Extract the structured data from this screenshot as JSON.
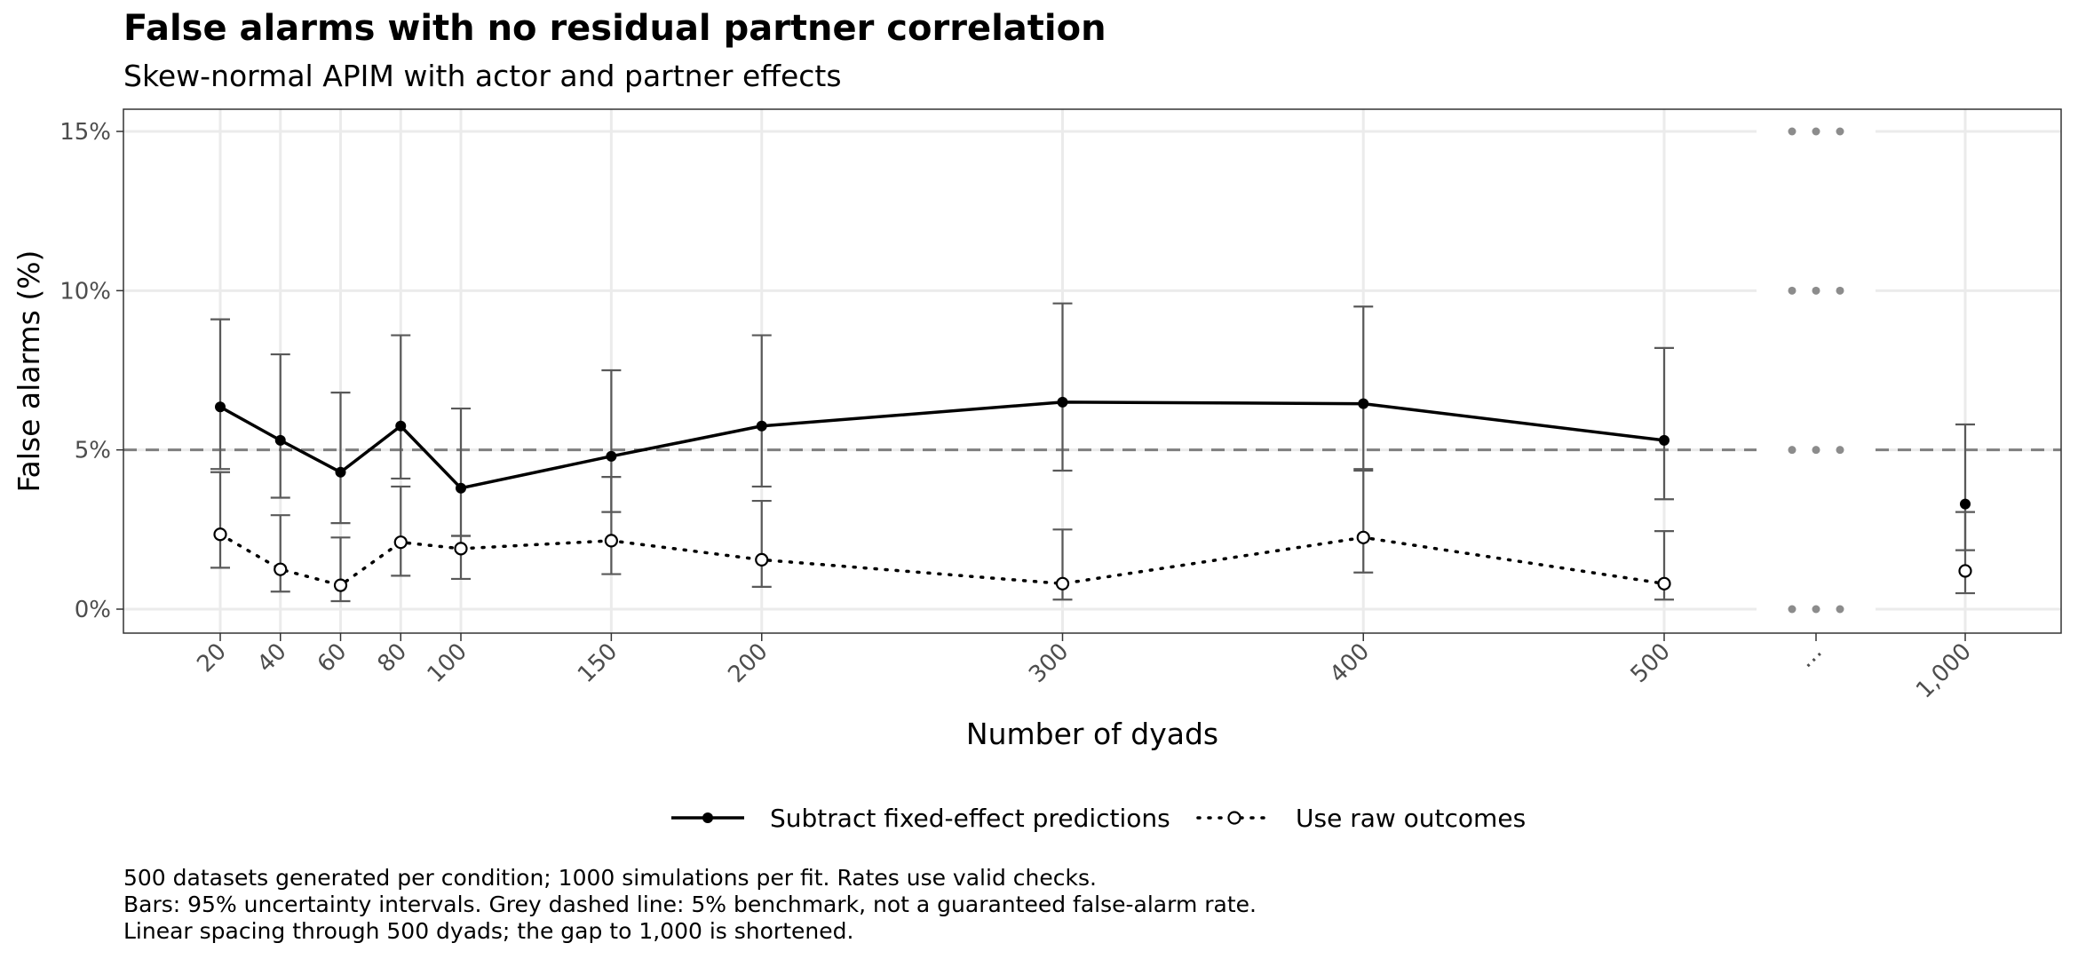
{
  "chart_data": {
    "type": "line",
    "title": "False alarms with no residual partner correlation",
    "subtitle": "Skew-normal APIM with actor and partner effects",
    "xlabel": "Number of dyads",
    "ylabel": "False alarms (%)",
    "categories": [
      "20",
      "40",
      "60",
      "80",
      "100",
      "150",
      "200",
      "300",
      "400",
      "500",
      "…",
      "1,000"
    ],
    "x": [
      20,
      40,
      60,
      80,
      100,
      150,
      200,
      300,
      400,
      500,
      1000
    ],
    "x_scale": "linear through 500 dyads; gap to 1,000 shortened",
    "y_ticks": [
      "0%",
      "5%",
      "10%",
      "15%"
    ],
    "ylim": [
      0,
      15
    ],
    "grid": true,
    "benchmark": {
      "value": 5,
      "style": "grey dashed line"
    },
    "series": [
      {
        "name": "Subtract fixed-effect predictions",
        "line_style": "solid",
        "marker": "filled circle",
        "values": [
          6.35,
          5.3,
          4.3,
          5.75,
          3.8,
          4.8,
          5.75,
          6.5,
          6.45,
          5.3,
          3.3
        ],
        "lower": [
          4.4,
          3.5,
          2.7,
          4.1,
          2.3,
          3.05,
          3.85,
          4.35,
          4.35,
          3.45,
          1.85
        ],
        "upper": [
          9.1,
          8.0,
          6.8,
          8.6,
          6.3,
          7.5,
          8.6,
          9.6,
          9.5,
          8.2,
          5.8
        ]
      },
      {
        "name": "Use raw outcomes",
        "line_style": "dotted",
        "marker": "open circle",
        "values": [
          2.35,
          1.25,
          0.75,
          2.1,
          1.9,
          2.15,
          1.55,
          0.8,
          2.25,
          0.8,
          1.2
        ],
        "lower": [
          1.3,
          0.55,
          0.25,
          1.05,
          0.95,
          1.1,
          0.7,
          0.3,
          1.15,
          0.3,
          0.5
        ],
        "upper": [
          4.3,
          2.95,
          2.25,
          3.85,
          2.3,
          4.15,
          3.4,
          2.5,
          4.4,
          2.45,
          3.05
        ]
      }
    ],
    "legend_position": "bottom",
    "caption": [
      "500 datasets generated per condition; 1000 simulations per fit. Rates use valid checks.",
      "Bars: 95% uncertainty intervals. Grey dashed line: 5% benchmark, not a guaranteed false-alarm rate.",
      "Linear spacing through 500 dyads; the gap to 1,000 is shortened."
    ],
    "colors": {
      "line": "#000000",
      "errorbar": "#595959",
      "benchmark": "#7f7f7f",
      "grid": "#ebebeb",
      "panel_border": "#333333"
    }
  }
}
